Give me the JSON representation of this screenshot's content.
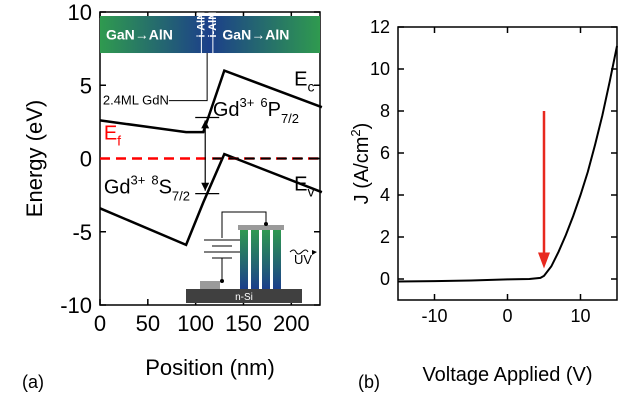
{
  "chart_data": [
    {
      "panel": "(a)",
      "type": "line",
      "xlabel": "Position (nm)",
      "ylabel": "Energy (eV)",
      "xlim": [
        0,
        230
      ],
      "ylim": [
        -10,
        10
      ],
      "xticks": [
        0,
        50,
        100,
        150,
        200
      ],
      "yticks": [
        -10,
        -5,
        0,
        5,
        10
      ],
      "series": [
        {
          "name": "Ec",
          "x": [
            0,
            90,
            108,
            130,
            232
          ],
          "y": [
            2.6,
            1.8,
            1.8,
            6.0,
            3.5
          ]
        },
        {
          "name": "Ev",
          "x": [
            0,
            90,
            108,
            130,
            232
          ],
          "y": [
            -3.4,
            -5.9,
            -3.0,
            0.3,
            -2.3
          ]
        },
        {
          "name": "Ef",
          "x": [
            0,
            232
          ],
          "y": [
            0,
            0
          ],
          "color": "#ff0000",
          "style": "dashed"
        }
      ],
      "labels": {
        "ec": "E",
        "ec_sub": "c",
        "ev": "E",
        "ev_sub": "v",
        "ef": "E",
        "ef_sub": "f",
        "gd_upper_main": "Gd",
        "gd_upper_charge": "3+",
        "gd_upper_super": "6",
        "gd_upper_state": "P",
        "gd_upper_sub": "7/2",
        "gd_lower_main": "Gd",
        "gd_lower_charge": "3+",
        "gd_lower_super": "8",
        "gd_lower_state": "S",
        "gd_lower_sub": "7/2",
        "gdn": "2.4ML GdN",
        "band_left": "GaN→AlN",
        "band_right": "GaN→AlN",
        "band_mid1": "i-AlN",
        "band_mid2": "i-AlN",
        "substrate": "n-Si",
        "uv": "UV"
      },
      "colors": {
        "band_gradient": [
          "#2f9a4f",
          "#1c3f8a"
        ],
        "ef": "#ff0000"
      }
    },
    {
      "panel": "(b)",
      "type": "line",
      "xlabel": "Voltage Applied (V)",
      "ylabel_main": "J (A/cm",
      "ylabel_sup": "2",
      "ylabel_end": ")",
      "xlim": [
        -15,
        15
      ],
      "ylim": [
        -1,
        12
      ],
      "xticks": [
        -10,
        0,
        10
      ],
      "yticks": [
        0,
        2,
        4,
        6,
        8,
        10,
        12
      ],
      "series": [
        {
          "name": "J",
          "x": [
            -15,
            -10,
            -5,
            0,
            3,
            4.5,
            5,
            6,
            7,
            8,
            9,
            10,
            11,
            12,
            13,
            14,
            15
          ],
          "y": [
            -0.12,
            -0.1,
            -0.07,
            -0.02,
            0.0,
            0.05,
            0.15,
            0.6,
            1.3,
            2.1,
            3.0,
            4.0,
            5.1,
            6.4,
            7.8,
            9.4,
            11.1
          ]
        }
      ],
      "arrow": {
        "x": 5,
        "y_from": 8.0,
        "y_to": 0.5,
        "color": "#e8281e"
      }
    }
  ]
}
